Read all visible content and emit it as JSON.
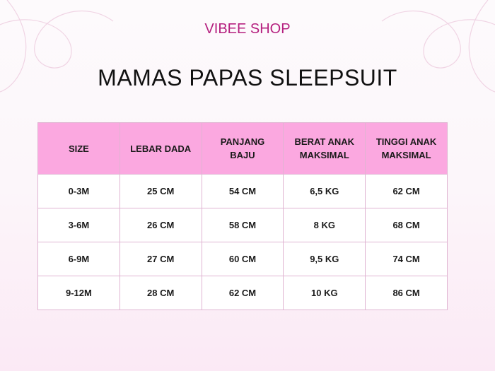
{
  "header": {
    "shop": "VIBEE SHOP",
    "title": "MAMAS PAPAS SLEEPSUIT"
  },
  "table": {
    "columns": [
      "SIZE",
      "LEBAR DADA",
      "PANJANG BAJU",
      "BERAT ANAK MAKSIMAL",
      "TINGGI ANAK MAKSIMAL"
    ],
    "rows": [
      [
        "0-3M",
        "25 CM",
        "54 CM",
        "6,5 KG",
        "62 CM"
      ],
      [
        "3-6M",
        "26 CM",
        "58 CM",
        "8 KG",
        "68 CM"
      ],
      [
        "6-9M",
        "27 CM",
        "60 CM",
        "9,5 KG",
        "74 CM"
      ],
      [
        "9-12M",
        "28 CM",
        "62 CM",
        "10 KG",
        "86 CM"
      ]
    ]
  },
  "colors": {
    "accent": "#b5207f",
    "header_fill": "#fba8e0"
  }
}
